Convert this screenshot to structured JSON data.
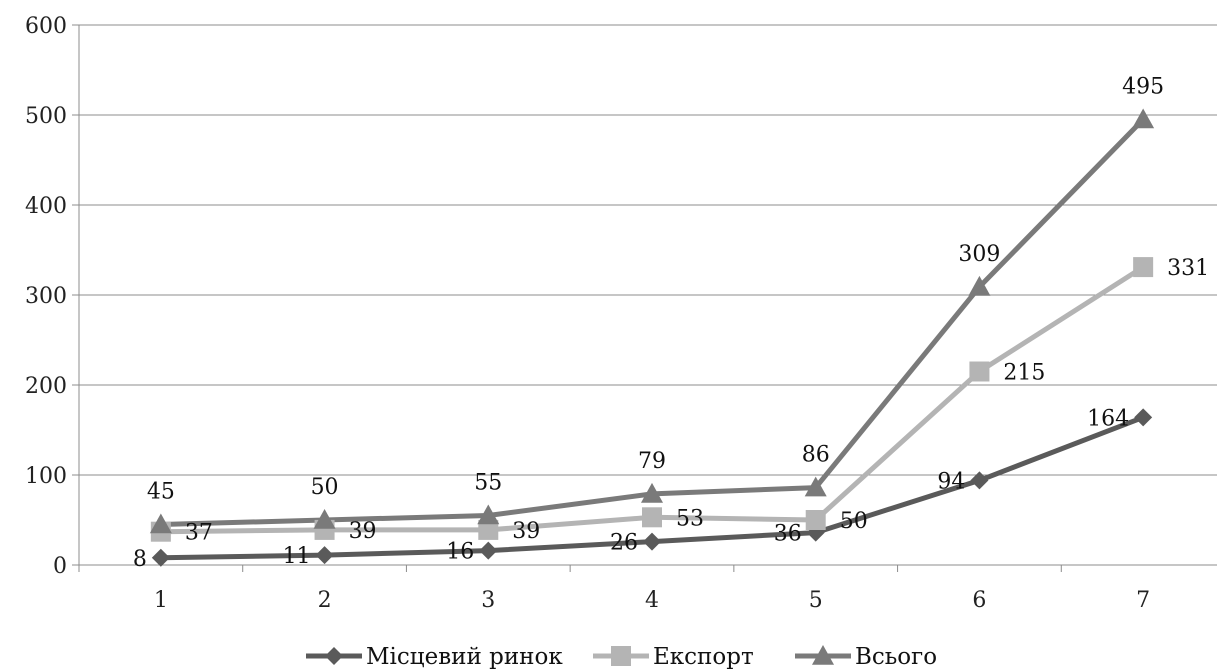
{
  "chart_data": {
    "type": "line",
    "title": "",
    "xlabel": "",
    "ylabel": "",
    "x": [
      "1",
      "2",
      "3",
      "4",
      "5",
      "6",
      "7"
    ],
    "ylim": [
      0,
      600
    ],
    "yticks": [
      0,
      100,
      200,
      300,
      400,
      500,
      600
    ],
    "grid": "horizontal",
    "legend": "bottom",
    "series": [
      {
        "name": "Місцевий ринок",
        "values": [
          8,
          11,
          16,
          26,
          36,
          94,
          164
        ],
        "color": "#5a5a5a",
        "marker": "diamond",
        "label_position": "left"
      },
      {
        "name": "Експорт",
        "values": [
          37,
          39,
          39,
          53,
          50,
          215,
          331
        ],
        "color": "#b4b4b4",
        "marker": "square",
        "label_position": "right"
      },
      {
        "name": "Всього",
        "values": [
          45,
          50,
          55,
          79,
          86,
          309,
          495
        ],
        "color": "#7a7a7a",
        "marker": "triangle",
        "label_position": "above"
      }
    ]
  }
}
